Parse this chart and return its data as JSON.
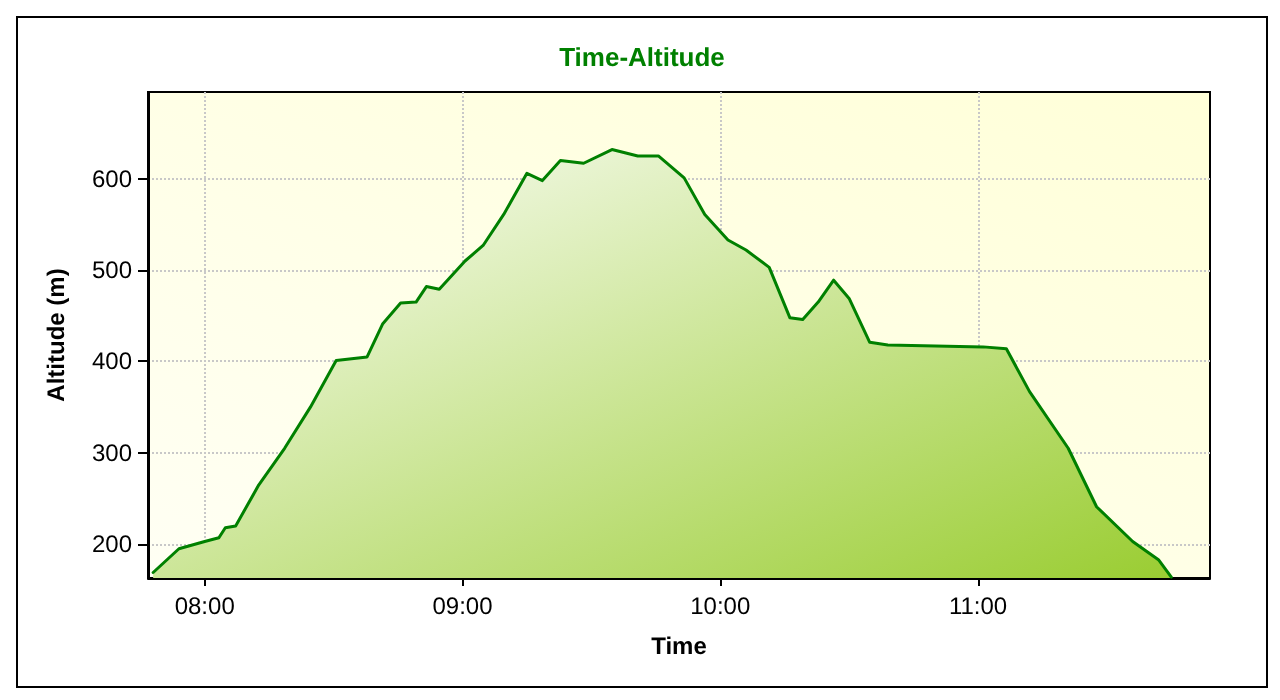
{
  "chart_data": {
    "type": "area",
    "title": "Time-Altitude",
    "xlabel": "Time",
    "ylabel": "Altitude (m)",
    "xlim": [
      7.78,
      11.9
    ],
    "ylim": [
      163,
      695
    ],
    "xticks": [
      {
        "value": 8,
        "label": "08:00"
      },
      {
        "value": 9,
        "label": "09:00"
      },
      {
        "value": 10,
        "label": "10:00"
      },
      {
        "value": 11,
        "label": "11:00"
      }
    ],
    "yticks": [
      200,
      300,
      400,
      500,
      600
    ],
    "grid": true,
    "marker": "none",
    "line_style": "solid",
    "series": [
      {
        "color": "#008000",
        "x": [
          7.8,
          7.9,
          8.0,
          8.055,
          8.08,
          8.12,
          8.21,
          8.31,
          8.41,
          8.51,
          8.63,
          8.69,
          8.76,
          8.82,
          8.86,
          8.91,
          9.01,
          9.08,
          9.16,
          9.25,
          9.31,
          9.38,
          9.47,
          9.58,
          9.68,
          9.76,
          9.86,
          9.94,
          10.03,
          10.1,
          10.19,
          10.27,
          10.32,
          10.38,
          10.44,
          10.5,
          10.58,
          10.65,
          11.02,
          11.11,
          11.2,
          11.35,
          11.46,
          11.6,
          11.7,
          11.75
        ],
        "values": [
          169,
          195,
          203,
          207,
          218,
          220,
          265,
          305,
          350,
          401,
          405,
          441,
          464,
          465,
          482,
          479,
          510,
          527,
          561,
          606,
          598,
          620,
          617,
          632,
          625,
          625,
          601,
          561,
          533,
          522,
          503,
          448,
          446,
          465,
          489,
          469,
          421,
          418,
          416,
          414,
          367,
          305,
          241,
          203,
          183,
          164
        ]
      }
    ]
  }
}
